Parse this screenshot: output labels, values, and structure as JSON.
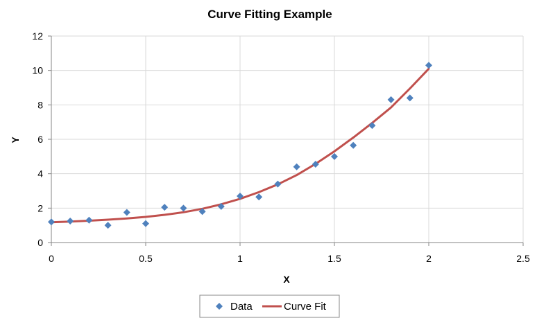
{
  "chart_data": {
    "type": "scatter",
    "title": "Curve Fitting Example",
    "xlabel": "X",
    "ylabel": "Y",
    "xlim": [
      0,
      2.5
    ],
    "ylim": [
      0,
      12
    ],
    "x_ticks": [
      0,
      0.5,
      1,
      1.5,
      2,
      2.5
    ],
    "x_tick_labels": [
      "0",
      "0.5",
      "1",
      "1.5",
      "2",
      "2.5"
    ],
    "y_ticks": [
      0,
      2,
      4,
      6,
      8,
      10,
      12
    ],
    "y_tick_labels": [
      "0",
      "2",
      "4",
      "6",
      "8",
      "10",
      "12"
    ],
    "grid": true,
    "legend_position": "bottom",
    "series": [
      {
        "name": "Data",
        "kind": "scatter",
        "marker": "diamond",
        "color": "#4f81bd",
        "x": [
          0,
          0.1,
          0.2,
          0.3,
          0.4,
          0.5,
          0.6,
          0.7,
          0.8,
          0.9,
          1.0,
          1.1,
          1.2,
          1.3,
          1.4,
          1.5,
          1.6,
          1.7,
          1.8,
          1.9,
          2.0
        ],
        "y": [
          1.2,
          1.25,
          1.3,
          1.0,
          1.75,
          1.1,
          2.05,
          2.0,
          1.8,
          2.1,
          2.7,
          2.65,
          3.4,
          4.4,
          4.55,
          5.0,
          5.65,
          6.8,
          8.3,
          8.4,
          10.3
        ]
      },
      {
        "name": "Curve Fit",
        "kind": "line",
        "color": "#c0504d",
        "x": [
          0,
          0.1,
          0.2,
          0.3,
          0.4,
          0.5,
          0.6,
          0.7,
          0.8,
          0.9,
          1.0,
          1.1,
          1.2,
          1.3,
          1.4,
          1.5,
          1.6,
          1.7,
          1.8,
          1.9,
          2.0
        ],
        "y": [
          1.18,
          1.22,
          1.27,
          1.33,
          1.4,
          1.49,
          1.61,
          1.76,
          1.96,
          2.22,
          2.54,
          2.93,
          3.38,
          3.92,
          4.57,
          5.3,
          6.1,
          6.95,
          7.85,
          8.95,
          10.1
        ]
      }
    ]
  }
}
